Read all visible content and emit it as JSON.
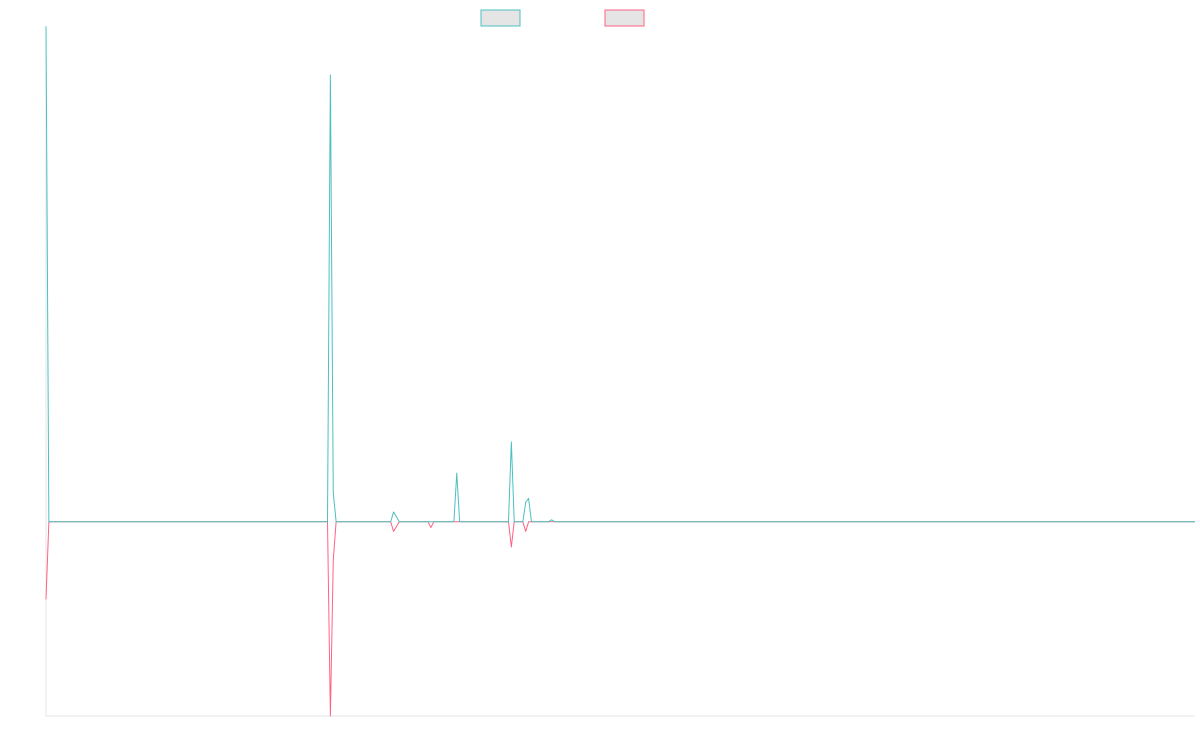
{
  "chart_data": {
    "type": "line",
    "title": "",
    "xlabel": "",
    "ylabel": "",
    "grid": false,
    "legend_position": "top-center",
    "x": [
      0,
      1,
      2,
      95,
      96,
      97,
      98,
      99,
      100,
      101,
      102,
      103,
      104,
      105,
      118,
      119,
      120,
      121,
      123,
      131,
      132,
      133,
      134,
      135,
      141,
      142,
      143,
      144,
      145,
      158,
      159,
      160,
      161,
      162,
      163,
      164,
      165,
      166,
      167,
      168,
      169,
      170,
      171,
      175,
      176,
      177,
      400
    ],
    "xlim": [
      0,
      400
    ],
    "ylim": [
      -1,
      2.5
    ],
    "series": [
      {
        "name": "",
        "color": "#4bc0c0",
        "fill": "#e5e5e5",
        "values": [
          2.55,
          0,
          0,
          0,
          0,
          0,
          0,
          2.3,
          0.15,
          0,
          0,
          0,
          0,
          0,
          0,
          0,
          0,
          0.05,
          0,
          0,
          0,
          0,
          0,
          0,
          0,
          0,
          0.25,
          0,
          0,
          0,
          0,
          0,
          0,
          0.41,
          0,
          0,
          0,
          0,
          0.1,
          0.12,
          0,
          0,
          0,
          0,
          0.01,
          0,
          0
        ]
      },
      {
        "name": "",
        "color": "#ff6384",
        "fill": "#e5e5e5",
        "values": [
          -0.4,
          0,
          0,
          0,
          0,
          0,
          0,
          -1.0,
          -0.2,
          0,
          0,
          0,
          0,
          0,
          0,
          0,
          0,
          -0.05,
          0,
          0,
          0,
          0,
          -0.03,
          0,
          0,
          0,
          0,
          0,
          0,
          0,
          0,
          0,
          0,
          -0.13,
          0,
          0,
          0,
          0,
          -0.05,
          0,
          0,
          0,
          0,
          0,
          0,
          0,
          0
        ]
      }
    ]
  }
}
